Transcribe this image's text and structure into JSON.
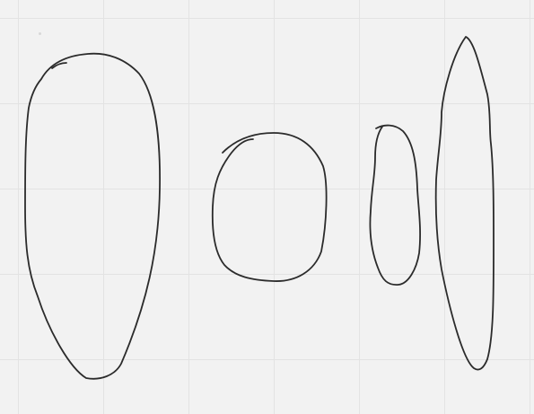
{
  "canvas": {
    "background_color": "#f2f2f2",
    "grid_color": "#e3e3e3",
    "grid_visible": true,
    "stroke_color": "#2b2b2b"
  },
  "strokes": [
    {
      "name": "tall-oval-stroke",
      "tool": "pen"
    },
    {
      "name": "circle-stroke",
      "tool": "pen"
    },
    {
      "name": "small-oval-stroke",
      "tool": "pen"
    },
    {
      "name": "thin-ellipse-stroke",
      "tool": "pen"
    }
  ]
}
